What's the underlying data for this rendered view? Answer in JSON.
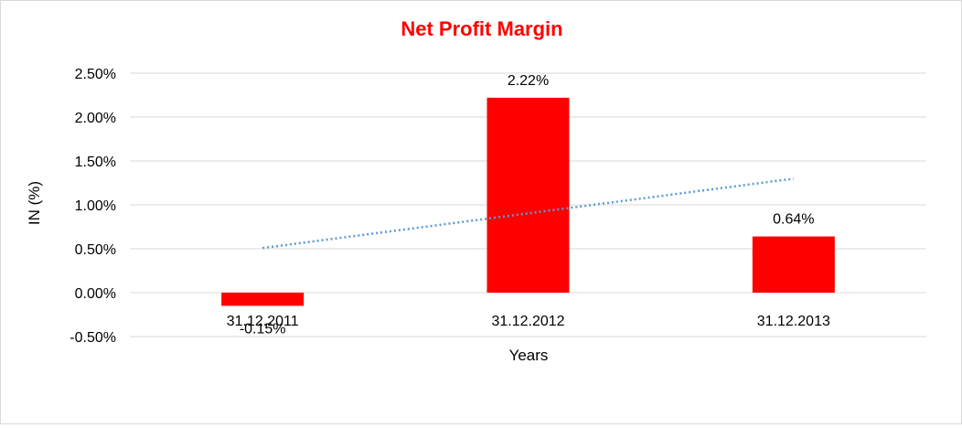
{
  "chart_data": {
    "type": "bar",
    "title": "Net Profit Margin",
    "xlabel": "Years",
    "ylabel": "IN (%)",
    "categories": [
      "31.12.2011",
      "31.12.2012",
      "31.12.2013"
    ],
    "series": [
      {
        "values": [
          -0.15,
          2.22,
          0.64
        ],
        "data_labels": [
          "-0.15%",
          "2.22%",
          "0.64%"
        ]
      }
    ],
    "trendline": {
      "type": "linear",
      "style": "dotted",
      "color": "#5b9bd5"
    },
    "ylim": [
      -0.5,
      2.5
    ],
    "yticks": [
      "2.50%",
      "2.00%",
      "1.50%",
      "1.00%",
      "0.50%",
      "0.00%",
      "-0.50%"
    ],
    "ytick_values": [
      2.5,
      2.0,
      1.5,
      1.0,
      0.5,
      0.0,
      -0.5
    ],
    "grid": true,
    "legend": "none",
    "colors": {
      "bar": "#ff0000",
      "title": "#ff0000",
      "grid": "#d9d9d9"
    }
  }
}
